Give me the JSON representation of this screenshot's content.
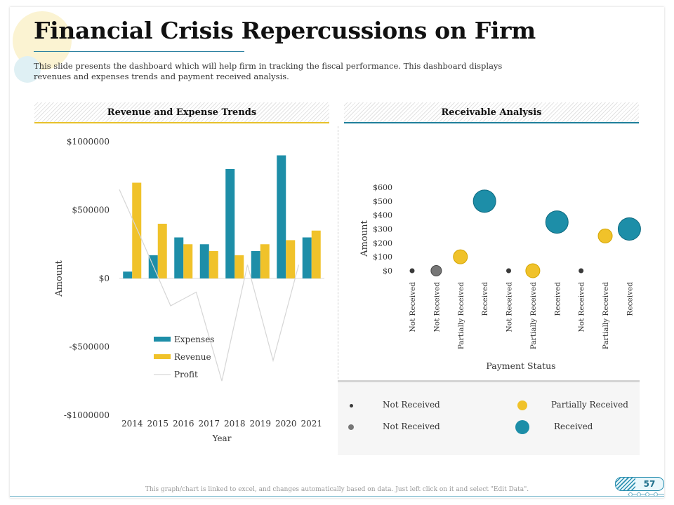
{
  "title": "Financial Crisis Repercussions on Firm",
  "subtitle": "This slide presents the dashboard which will help firm in tracking the fiscal performance. This dashboard displays revenues and expenses trends and payment received analysis.",
  "panels": {
    "left_title": "Revenue and Expense Trends",
    "right_title": "Receivable Analysis"
  },
  "colors": {
    "teal": "#1d8ea8",
    "yellow": "#f0c22a",
    "dark": "#3a3a3a",
    "gray": "#777777",
    "profit_line": "#d6d6d6"
  },
  "chart_data": [
    {
      "type": "bar",
      "xlabel": "Year",
      "ylabel": "Amount",
      "ylim": [
        -1000000,
        1000000
      ],
      "y_ticks": [
        1000000,
        500000,
        0,
        -500000,
        -1000000
      ],
      "y_tick_labels": [
        "$1000000",
        "$500000",
        "$0",
        "-$500000",
        "-$1000000"
      ],
      "categories": [
        "2014",
        "2015",
        "2016",
        "2017",
        "2018",
        "2019",
        "2020",
        "2021"
      ],
      "series": [
        {
          "name": "Expenses",
          "type": "bar",
          "color": "#1d8ea8",
          "values": [
            50000,
            170000,
            300000,
            250000,
            800000,
            200000,
            900000,
            300000
          ]
        },
        {
          "name": "Revenue",
          "type": "bar",
          "color": "#f0c22a",
          "values": [
            700000,
            400000,
            250000,
            200000,
            170000,
            250000,
            280000,
            350000
          ]
        },
        {
          "name": "Profit",
          "type": "line",
          "color": "#d6d6d6",
          "values": [
            650000,
            230000,
            -200000,
            -100000,
            -750000,
            100000,
            -600000,
            100000
          ]
        }
      ],
      "legend": "bottom-left"
    },
    {
      "type": "scatter",
      "xlabel": "Payment Status",
      "ylabel": "Amount",
      "ylim": [
        0,
        600
      ],
      "y_ticks": [
        0,
        100,
        200,
        300,
        400,
        500,
        600
      ],
      "y_tick_labels": [
        "$0",
        "$100",
        "$200",
        "$300",
        "$400",
        "$500",
        "$600"
      ],
      "categories": [
        "Not Received",
        "Not Received",
        "Partially Received",
        "Received",
        "Not Received",
        "Partially Received",
        "Received",
        "Not Received",
        "Partially Received",
        "Received"
      ],
      "points": [
        {
          "category": "Not Received",
          "value": 0,
          "group": "not_received_small"
        },
        {
          "category": "Not Received",
          "value": 0,
          "group": "not_received_gray"
        },
        {
          "category": "Partially Received",
          "value": 100,
          "group": "partially_received"
        },
        {
          "category": "Received",
          "value": 500,
          "group": "received"
        },
        {
          "category": "Not Received",
          "value": 0,
          "group": "not_received_small"
        },
        {
          "category": "Partially Received",
          "value": 0,
          "group": "partially_received"
        },
        {
          "category": "Received",
          "value": 350,
          "group": "received"
        },
        {
          "category": "Not Received",
          "value": 0,
          "group": "not_received_small"
        },
        {
          "category": "Partially Received",
          "value": 250,
          "group": "partially_received"
        },
        {
          "category": "Received",
          "value": 300,
          "group": "received"
        }
      ],
      "legend_items": [
        {
          "label": "Not Received",
          "group": "not_received_small",
          "color": "#3a3a3a"
        },
        {
          "label": "Partially Received",
          "group": "partially_received",
          "color": "#f0c22a"
        },
        {
          "label": "Not Received",
          "group": "not_received_gray",
          "color": "#777777"
        },
        {
          "label": "Received",
          "group": "received",
          "color": "#1d8ea8"
        }
      ],
      "legend": "bottom"
    }
  ],
  "footer": {
    "note": "This graph/chart is linked to excel, and changes automatically based on data. Just left click on it and select \"Edit Data\".",
    "page_number": "57"
  }
}
